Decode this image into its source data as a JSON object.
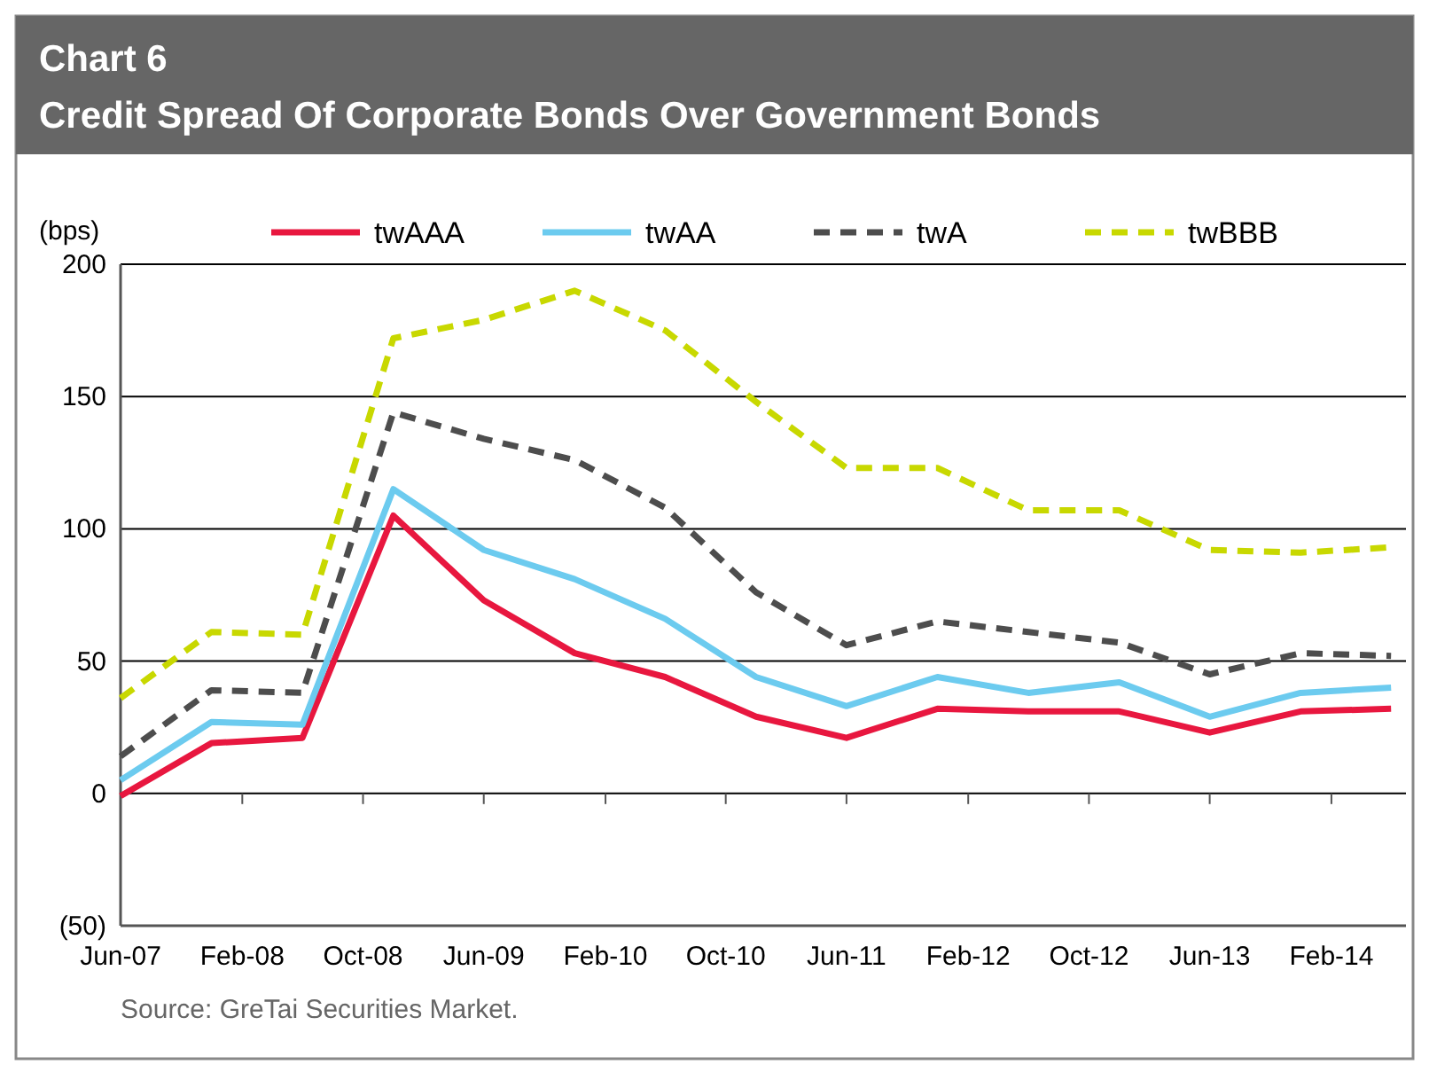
{
  "chart_data": {
    "type": "line",
    "title": "Chart 6",
    "subtitle": "Credit Spread Of Corporate Bonds Over Government Bonds",
    "ylabel": "(bps)",
    "annotations": [
      "Source: GreTai Securities Market."
    ],
    "x": [
      "2007-06",
      "2007-12",
      "2008-06",
      "2008-12",
      "2009-06",
      "2009-12",
      "2010-06",
      "2010-12",
      "2011-06",
      "2011-12",
      "2012-06",
      "2012-12",
      "2013-06",
      "2013-12",
      "2014-06"
    ],
    "xlim": [
      "2007-06",
      "2014-07"
    ],
    "xticks": [
      {
        "value": "2007-06",
        "label": "Jun-07"
      },
      {
        "value": "2008-02",
        "label": "Feb-08"
      },
      {
        "value": "2008-10",
        "label": "Oct-08"
      },
      {
        "value": "2009-06",
        "label": "Jun-09"
      },
      {
        "value": "2010-02",
        "label": "Feb-10"
      },
      {
        "value": "2010-10",
        "label": "Oct-10"
      },
      {
        "value": "2011-06",
        "label": "Jun-11"
      },
      {
        "value": "2012-02",
        "label": "Feb-12"
      },
      {
        "value": "2012-10",
        "label": "Oct-12"
      },
      {
        "value": "2013-06",
        "label": "Jun-13"
      },
      {
        "value": "2014-02",
        "label": "Feb-14"
      }
    ],
    "ylim": [
      -50,
      200
    ],
    "yticks": [
      {
        "value": -50,
        "label": "(50)"
      },
      0,
      50,
      100,
      150,
      200
    ],
    "grid": "y",
    "legend": "top",
    "marker": "none",
    "series": [
      {
        "name": "twAAA",
        "color": "#e8173f",
        "line_style": "solid",
        "values": [
          -1,
          19,
          21,
          105,
          73,
          53,
          44,
          29,
          21,
          32,
          31,
          31,
          23,
          31,
          32
        ]
      },
      {
        "name": "twAA",
        "color": "#6ccbef",
        "line_style": "solid",
        "values": [
          5,
          27,
          26,
          115,
          92,
          81,
          66,
          44,
          33,
          44,
          38,
          42,
          29,
          38,
          40
        ]
      },
      {
        "name": "twA",
        "color": "#4d4d4d",
        "line_style": "dashed",
        "values": [
          14,
          39,
          38,
          144,
          134,
          126,
          108,
          76,
          56,
          65,
          61,
          57,
          45,
          53,
          52
        ]
      },
      {
        "name": "twBBB",
        "color": "#c8d800",
        "line_style": "dashed",
        "values": [
          36,
          61,
          60,
          172,
          179,
          190,
          175,
          148,
          123,
          123,
          107,
          107,
          92,
          91,
          93
        ]
      }
    ]
  }
}
